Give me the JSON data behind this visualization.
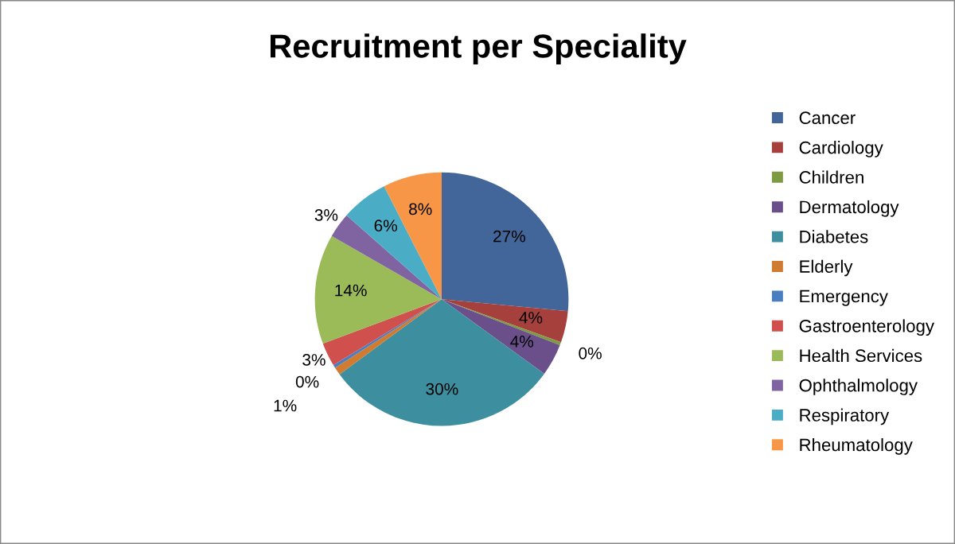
{
  "chart_data": {
    "type": "pie",
    "title": "Recruitment per Speciality",
    "categories": [
      "Cancer",
      "Cardiology",
      "Children",
      "Dermatology",
      "Diabetes",
      "Elderly",
      "Emergency",
      "Gastroenterology",
      "Health Services",
      "Ophthalmology",
      "Respiratory",
      "Rheumatology"
    ],
    "values": [
      26.5,
      4,
      0.4,
      4.1,
      29.9,
      1,
      0.4,
      3,
      14,
      3.2,
      6,
      7.5
    ],
    "value_labels": [
      "27%",
      "4%",
      "0%",
      "4%",
      "30%",
      "1%",
      "0%",
      "3%",
      "14%",
      "3%",
      "6%",
      "8%"
    ],
    "colors": [
      "#426699",
      "#a5403d",
      "#7e9a42",
      "#6a4f8a",
      "#3d8fa0",
      "#d07b30",
      "#4a7ec0",
      "#cf504d",
      "#9bbb59",
      "#8064a2",
      "#4bacc6",
      "#f79646"
    ],
    "legend": "right"
  }
}
